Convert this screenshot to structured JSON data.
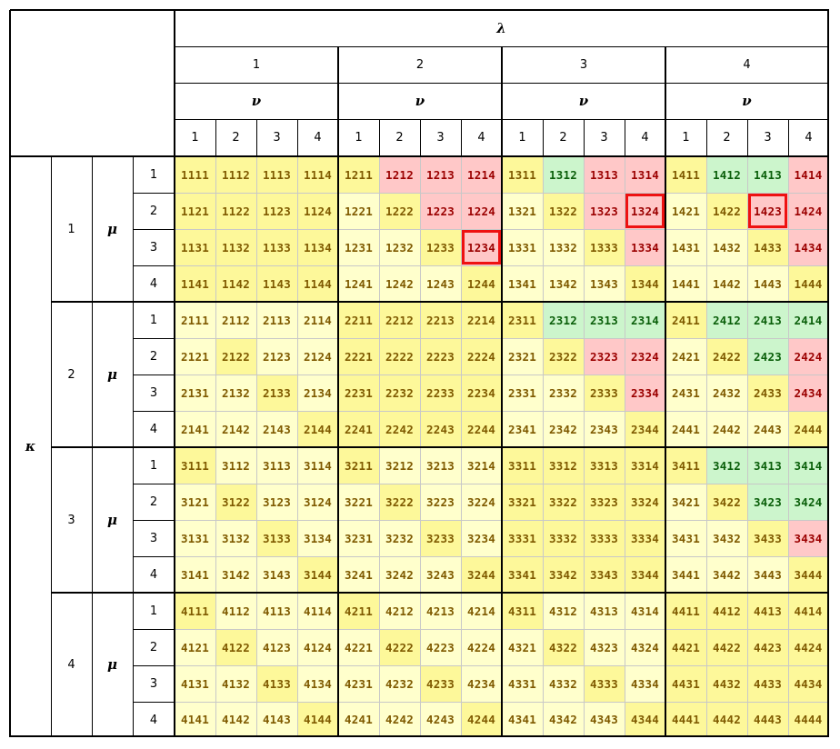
{
  "symbols": {
    "lambda": "λ",
    "nu": "ν",
    "kappa": "κ",
    "mu": "μ"
  },
  "indices": [
    "1",
    "2",
    "3",
    "4"
  ],
  "colors": {
    "light_yellow": "#ffffcc",
    "yellow": "#fdf89a",
    "pink": "#ffc8c8",
    "green": "#ccf5cc",
    "text_default": "#7f5a00",
    "text_pink": "#9b0000",
    "text_green": "#0a5f0a",
    "highlight_box": "#e11"
  },
  "rows": [
    {
      "klam": "11",
      "cells": [
        [
          "1111",
          "yl"
        ],
        [
          "1112",
          "yl"
        ],
        [
          "1113",
          "yl"
        ],
        [
          "1114",
          "yl"
        ],
        [
          "1211",
          "yl"
        ],
        [
          "1212",
          "pk"
        ],
        [
          "1213",
          "pk"
        ],
        [
          "1214",
          "pk"
        ],
        [
          "1311",
          "yl"
        ],
        [
          "1312",
          "gr"
        ],
        [
          "1313",
          "pk"
        ],
        [
          "1314",
          "pk"
        ],
        [
          "1411",
          "yl"
        ],
        [
          "1412",
          "gr"
        ],
        [
          "1413",
          "gr"
        ],
        [
          "1414",
          "pk"
        ]
      ]
    },
    {
      "cells": [
        [
          "1121",
          "yl"
        ],
        [
          "1122",
          "yl"
        ],
        [
          "1123",
          "yl"
        ],
        [
          "1124",
          "yl"
        ],
        [
          "1221",
          "lt"
        ],
        [
          "1222",
          "yl"
        ],
        [
          "1223",
          "pk"
        ],
        [
          "1224",
          "pk"
        ],
        [
          "1321",
          "lt"
        ],
        [
          "1322",
          "yl"
        ],
        [
          "1323",
          "pk"
        ],
        [
          "1324",
          "pk",
          "box"
        ],
        [
          "1421",
          "lt"
        ],
        [
          "1422",
          "yl"
        ],
        [
          "1423",
          "pk",
          "box"
        ],
        [
          "1424",
          "pk"
        ]
      ]
    },
    {
      "cells": [
        [
          "1131",
          "yl"
        ],
        [
          "1132",
          "yl"
        ],
        [
          "1133",
          "yl"
        ],
        [
          "1134",
          "yl"
        ],
        [
          "1231",
          "lt"
        ],
        [
          "1232",
          "lt"
        ],
        [
          "1233",
          "yl"
        ],
        [
          "1234",
          "pk",
          "box"
        ],
        [
          "1331",
          "lt"
        ],
        [
          "1332",
          "lt"
        ],
        [
          "1333",
          "yl"
        ],
        [
          "1334",
          "pk"
        ],
        [
          "1431",
          "lt"
        ],
        [
          "1432",
          "lt"
        ],
        [
          "1433",
          "yl"
        ],
        [
          "1434",
          "pk"
        ]
      ]
    },
    {
      "cells": [
        [
          "1141",
          "yl"
        ],
        [
          "1142",
          "yl"
        ],
        [
          "1143",
          "yl"
        ],
        [
          "1144",
          "yl"
        ],
        [
          "1241",
          "lt"
        ],
        [
          "1242",
          "lt"
        ],
        [
          "1243",
          "lt"
        ],
        [
          "1244",
          "yl"
        ],
        [
          "1341",
          "lt"
        ],
        [
          "1342",
          "lt"
        ],
        [
          "1343",
          "lt"
        ],
        [
          "1344",
          "yl"
        ],
        [
          "1441",
          "lt"
        ],
        [
          "1442",
          "lt"
        ],
        [
          "1443",
          "lt"
        ],
        [
          "1444",
          "yl"
        ]
      ]
    },
    {
      "cells": [
        [
          "2111",
          "lt"
        ],
        [
          "2112",
          "lt"
        ],
        [
          "2113",
          "lt"
        ],
        [
          "2114",
          "lt"
        ],
        [
          "2211",
          "yl"
        ],
        [
          "2212",
          "yl"
        ],
        [
          "2213",
          "yl"
        ],
        [
          "2214",
          "yl"
        ],
        [
          "2311",
          "yl"
        ],
        [
          "2312",
          "gr"
        ],
        [
          "2313",
          "gr"
        ],
        [
          "2314",
          "gr"
        ],
        [
          "2411",
          "yl"
        ],
        [
          "2412",
          "gr"
        ],
        [
          "2413",
          "gr"
        ],
        [
          "2414",
          "gr"
        ]
      ]
    },
    {
      "cells": [
        [
          "2121",
          "lt"
        ],
        [
          "2122",
          "yl"
        ],
        [
          "2123",
          "lt"
        ],
        [
          "2124",
          "lt"
        ],
        [
          "2221",
          "yl"
        ],
        [
          "2222",
          "yl"
        ],
        [
          "2223",
          "yl"
        ],
        [
          "2224",
          "yl"
        ],
        [
          "2321",
          "lt"
        ],
        [
          "2322",
          "yl"
        ],
        [
          "2323",
          "pk"
        ],
        [
          "2324",
          "pk"
        ],
        [
          "2421",
          "lt"
        ],
        [
          "2422",
          "yl"
        ],
        [
          "2423",
          "gr"
        ],
        [
          "2424",
          "pk"
        ]
      ]
    },
    {
      "cells": [
        [
          "2131",
          "lt"
        ],
        [
          "2132",
          "lt"
        ],
        [
          "2133",
          "yl"
        ],
        [
          "2134",
          "lt"
        ],
        [
          "2231",
          "yl"
        ],
        [
          "2232",
          "yl"
        ],
        [
          "2233",
          "yl"
        ],
        [
          "2234",
          "yl"
        ],
        [
          "2331",
          "lt"
        ],
        [
          "2332",
          "lt"
        ],
        [
          "2333",
          "yl"
        ],
        [
          "2334",
          "pk"
        ],
        [
          "2431",
          "lt"
        ],
        [
          "2432",
          "lt"
        ],
        [
          "2433",
          "yl"
        ],
        [
          "2434",
          "pk"
        ]
      ]
    },
    {
      "cells": [
        [
          "2141",
          "lt"
        ],
        [
          "2142",
          "lt"
        ],
        [
          "2143",
          "lt"
        ],
        [
          "2144",
          "yl"
        ],
        [
          "2241",
          "yl"
        ],
        [
          "2242",
          "yl"
        ],
        [
          "2243",
          "yl"
        ],
        [
          "2244",
          "yl"
        ],
        [
          "2341",
          "lt"
        ],
        [
          "2342",
          "lt"
        ],
        [
          "2343",
          "lt"
        ],
        [
          "2344",
          "yl"
        ],
        [
          "2441",
          "lt"
        ],
        [
          "2442",
          "lt"
        ],
        [
          "2443",
          "lt"
        ],
        [
          "2444",
          "yl"
        ]
      ]
    },
    {
      "cells": [
        [
          "3111",
          "yl"
        ],
        [
          "3112",
          "lt"
        ],
        [
          "3113",
          "lt"
        ],
        [
          "3114",
          "lt"
        ],
        [
          "3211",
          "yl"
        ],
        [
          "3212",
          "lt"
        ],
        [
          "3213",
          "lt"
        ],
        [
          "3214",
          "lt"
        ],
        [
          "3311",
          "yl"
        ],
        [
          "3312",
          "yl"
        ],
        [
          "3313",
          "yl"
        ],
        [
          "3314",
          "yl"
        ],
        [
          "3411",
          "yl"
        ],
        [
          "3412",
          "gr"
        ],
        [
          "3413",
          "gr"
        ],
        [
          "3414",
          "gr"
        ]
      ]
    },
    {
      "cells": [
        [
          "3121",
          "lt"
        ],
        [
          "3122",
          "yl"
        ],
        [
          "3123",
          "lt"
        ],
        [
          "3124",
          "lt"
        ],
        [
          "3221",
          "lt"
        ],
        [
          "3222",
          "yl"
        ],
        [
          "3223",
          "lt"
        ],
        [
          "3224",
          "lt"
        ],
        [
          "3321",
          "yl"
        ],
        [
          "3322",
          "yl"
        ],
        [
          "3323",
          "yl"
        ],
        [
          "3324",
          "yl"
        ],
        [
          "3421",
          "lt"
        ],
        [
          "3422",
          "yl"
        ],
        [
          "3423",
          "gr"
        ],
        [
          "3424",
          "gr"
        ]
      ]
    },
    {
      "cells": [
        [
          "3131",
          "lt"
        ],
        [
          "3132",
          "lt"
        ],
        [
          "3133",
          "yl"
        ],
        [
          "3134",
          "lt"
        ],
        [
          "3231",
          "lt"
        ],
        [
          "3232",
          "lt"
        ],
        [
          "3233",
          "yl"
        ],
        [
          "3234",
          "lt"
        ],
        [
          "3331",
          "yl"
        ],
        [
          "3332",
          "yl"
        ],
        [
          "3333",
          "yl"
        ],
        [
          "3334",
          "yl"
        ],
        [
          "3431",
          "lt"
        ],
        [
          "3432",
          "lt"
        ],
        [
          "3433",
          "yl"
        ],
        [
          "3434",
          "pk"
        ]
      ]
    },
    {
      "cells": [
        [
          "3141",
          "lt"
        ],
        [
          "3142",
          "lt"
        ],
        [
          "3143",
          "lt"
        ],
        [
          "3144",
          "yl"
        ],
        [
          "3241",
          "lt"
        ],
        [
          "3242",
          "lt"
        ],
        [
          "3243",
          "lt"
        ],
        [
          "3244",
          "yl"
        ],
        [
          "3341",
          "yl"
        ],
        [
          "3342",
          "yl"
        ],
        [
          "3343",
          "yl"
        ],
        [
          "3344",
          "yl"
        ],
        [
          "3441",
          "lt"
        ],
        [
          "3442",
          "lt"
        ],
        [
          "3443",
          "lt"
        ],
        [
          "3444",
          "yl"
        ]
      ]
    },
    {
      "cells": [
        [
          "4111",
          "yl"
        ],
        [
          "4112",
          "lt"
        ],
        [
          "4113",
          "lt"
        ],
        [
          "4114",
          "lt"
        ],
        [
          "4211",
          "yl"
        ],
        [
          "4212",
          "lt"
        ],
        [
          "4213",
          "lt"
        ],
        [
          "4214",
          "lt"
        ],
        [
          "4311",
          "yl"
        ],
        [
          "4312",
          "lt"
        ],
        [
          "4313",
          "lt"
        ],
        [
          "4314",
          "lt"
        ],
        [
          "4411",
          "yl"
        ],
        [
          "4412",
          "yl"
        ],
        [
          "4413",
          "yl"
        ],
        [
          "4414",
          "yl"
        ]
      ]
    },
    {
      "cells": [
        [
          "4121",
          "lt"
        ],
        [
          "4122",
          "yl"
        ],
        [
          "4123",
          "lt"
        ],
        [
          "4124",
          "lt"
        ],
        [
          "4221",
          "lt"
        ],
        [
          "4222",
          "yl"
        ],
        [
          "4223",
          "lt"
        ],
        [
          "4224",
          "lt"
        ],
        [
          "4321",
          "lt"
        ],
        [
          "4322",
          "yl"
        ],
        [
          "4323",
          "lt"
        ],
        [
          "4324",
          "lt"
        ],
        [
          "4421",
          "yl"
        ],
        [
          "4422",
          "yl"
        ],
        [
          "4423",
          "yl"
        ],
        [
          "4424",
          "yl"
        ]
      ]
    },
    {
      "cells": [
        [
          "4131",
          "lt"
        ],
        [
          "4132",
          "lt"
        ],
        [
          "4133",
          "yl"
        ],
        [
          "4134",
          "lt"
        ],
        [
          "4231",
          "lt"
        ],
        [
          "4232",
          "lt"
        ],
        [
          "4233",
          "yl"
        ],
        [
          "4234",
          "lt"
        ],
        [
          "4331",
          "lt"
        ],
        [
          "4332",
          "lt"
        ],
        [
          "4333",
          "yl"
        ],
        [
          "4334",
          "lt"
        ],
        [
          "4431",
          "yl"
        ],
        [
          "4432",
          "yl"
        ],
        [
          "4433",
          "yl"
        ],
        [
          "4434",
          "yl"
        ]
      ]
    },
    {
      "cells": [
        [
          "4141",
          "lt"
        ],
        [
          "4142",
          "lt"
        ],
        [
          "4143",
          "lt"
        ],
        [
          "4144",
          "yl"
        ],
        [
          "4241",
          "lt"
        ],
        [
          "4242",
          "lt"
        ],
        [
          "4243",
          "lt"
        ],
        [
          "4244",
          "yl"
        ],
        [
          "4341",
          "lt"
        ],
        [
          "4342",
          "lt"
        ],
        [
          "4343",
          "lt"
        ],
        [
          "4344",
          "yl"
        ],
        [
          "4441",
          "yl"
        ],
        [
          "4442",
          "yl"
        ],
        [
          "4443",
          "yl"
        ],
        [
          "4444",
          "yl"
        ]
      ]
    }
  ]
}
